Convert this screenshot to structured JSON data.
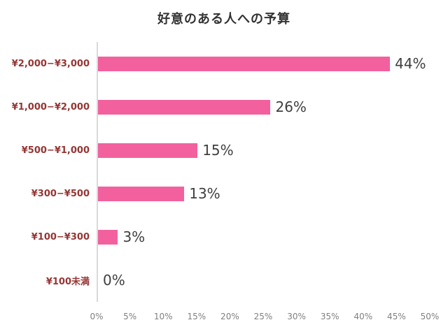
{
  "chart_data": {
    "type": "bar",
    "orientation": "horizontal",
    "title": "好意のある人への予算",
    "categories": [
      "¥2,000−¥3,000",
      "¥1,000−¥2,000",
      "¥500−¥1,000",
      "¥300−¥500",
      "¥100−¥300",
      "¥100未満"
    ],
    "values": [
      44,
      26,
      15,
      13,
      3,
      0
    ],
    "value_labels": [
      "44%",
      "26%",
      "15%",
      "13%",
      "3%",
      "0%"
    ],
    "xlabel": "",
    "ylabel": "",
    "xlim": [
      0,
      50
    ],
    "x_tick_step": 5,
    "x_ticks": [
      "0%",
      "5%",
      "10%",
      "15%",
      "20%",
      "25%",
      "30%",
      "35%",
      "40%",
      "45%",
      "50%"
    ],
    "grid": false,
    "legend": false,
    "colors": {
      "bar": "#f2619e",
      "category_label": "#943634",
      "value_label": "#3f3f3f",
      "tick_label": "#808080",
      "axis_line": "#d9d9d9",
      "title": "#333333",
      "background": "#ffffff"
    }
  }
}
